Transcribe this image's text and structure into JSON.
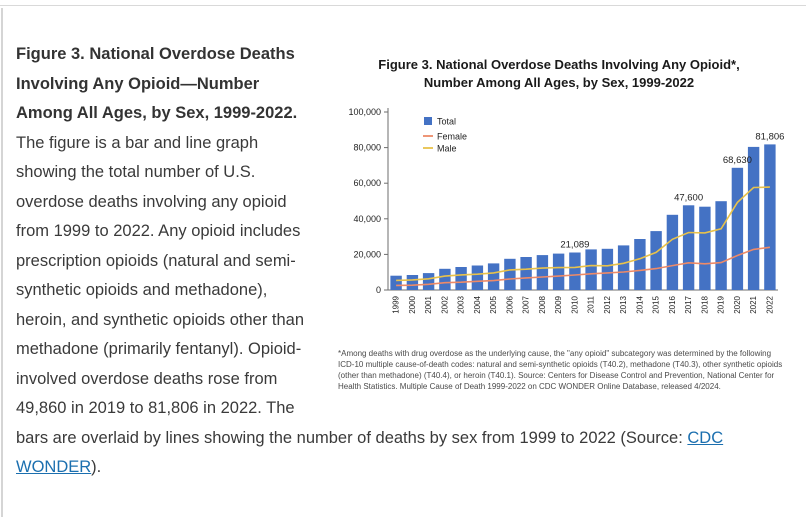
{
  "colors": {
    "link": "#1B6FAF",
    "bar_total": "#4472C4",
    "line_female": "#ED8A68",
    "line_male": "#E8C24B"
  },
  "article": {
    "heading_bold": "Figure 3. National Overdose Deaths Involving Any Opioid—Number Among All Ages, by Sex, 1999-2022.",
    "body_part1": " The figure is a bar and line graph showing the total number of U.S. overdose deaths involving any opioid from 1999 to 2022. Any opioid includes prescription opioids (natural and semi-synthetic opioids and methadone), heroin, and synthetic opioids other than methadone (primarily fentanyl). Opioid-involved overdose deaths rose from 49,860 in 2019 to 81,806 in 2022. The bars are overlaid by lines showing the number of deaths by sex from 1999 to 2022 (Source: ",
    "link_text": "CDC WONDER",
    "body_part2": ")."
  },
  "chart": {
    "title_line1": "Figure 3. National Overdose Deaths Involving Any Opioid*,",
    "title_line2": "Number Among All Ages, by Sex, 1999-2022",
    "footnote": "*Among deaths with drug overdose as the underlying cause, the \"any opioid\" subcategory was determined by the following ICD-10 multiple cause-of-death codes: natural and semi-synthetic opioids (T40.2), methadone (T40.3), other synthetic opioids (other than methadone) (T40.4), or heroin (T40.1). Source: Centers for Disease Control and Prevention, National Center for Health Statistics. Multiple Cause of Death 1999-2022 on CDC WONDER Online Database, released 4/2024."
  },
  "chart_data": {
    "type": "bar",
    "title": "Figure 3. National Overdose Deaths Involving Any Opioid*, Number Among All Ages, by Sex, 1999-2022",
    "xlabel": "",
    "ylabel": "",
    "ylim": [
      0,
      100000
    ],
    "yticks": [
      0,
      20000,
      40000,
      60000,
      80000,
      100000
    ],
    "ytick_labels": [
      "0",
      "20,000",
      "40,000",
      "60,000",
      "80,000",
      "100,000"
    ],
    "grid": false,
    "legend_position": "top-left",
    "categories": [
      "1999",
      "2000",
      "2001",
      "2002",
      "2003",
      "2004",
      "2005",
      "2006",
      "2007",
      "2008",
      "2009",
      "2010",
      "2011",
      "2012",
      "2013",
      "2014",
      "2015",
      "2016",
      "2017",
      "2018",
      "2019",
      "2020",
      "2021",
      "2022"
    ],
    "series": [
      {
        "name": "Total",
        "type": "bar",
        "color": "#4472C4",
        "values": [
          8048,
          8407,
          9496,
          11920,
          12940,
          13756,
          14918,
          17545,
          18516,
          19582,
          20422,
          21089,
          22784,
          23166,
          25052,
          28647,
          33091,
          42249,
          47600,
          46802,
          49860,
          68630,
          80411,
          81806
        ]
      },
      {
        "name": "Female",
        "type": "line",
        "color": "#ED8A68",
        "values": [
          2600,
          2700,
          3200,
          4100,
          4400,
          4900,
          5300,
          6200,
          6800,
          7300,
          7800,
          8400,
          9100,
          9600,
          10100,
          11000,
          12000,
          13700,
          15300,
          14700,
          15400,
          19400,
          22800,
          24000
        ]
      },
      {
        "name": "Male",
        "type": "line",
        "color": "#E8C24B",
        "values": [
          5400,
          5700,
          6300,
          7800,
          8500,
          8900,
          9600,
          11300,
          11700,
          12300,
          12600,
          12700,
          13700,
          13600,
          15000,
          17600,
          21100,
          28500,
          32300,
          32100,
          34400,
          49200,
          57600,
          57800
        ]
      }
    ],
    "annotations": [
      {
        "category": "2010",
        "label": "21,089"
      },
      {
        "category": "2017",
        "label": "47,600"
      },
      {
        "category": "2020",
        "label": "68,630"
      },
      {
        "category": "2022",
        "label": "81,806"
      }
    ]
  }
}
